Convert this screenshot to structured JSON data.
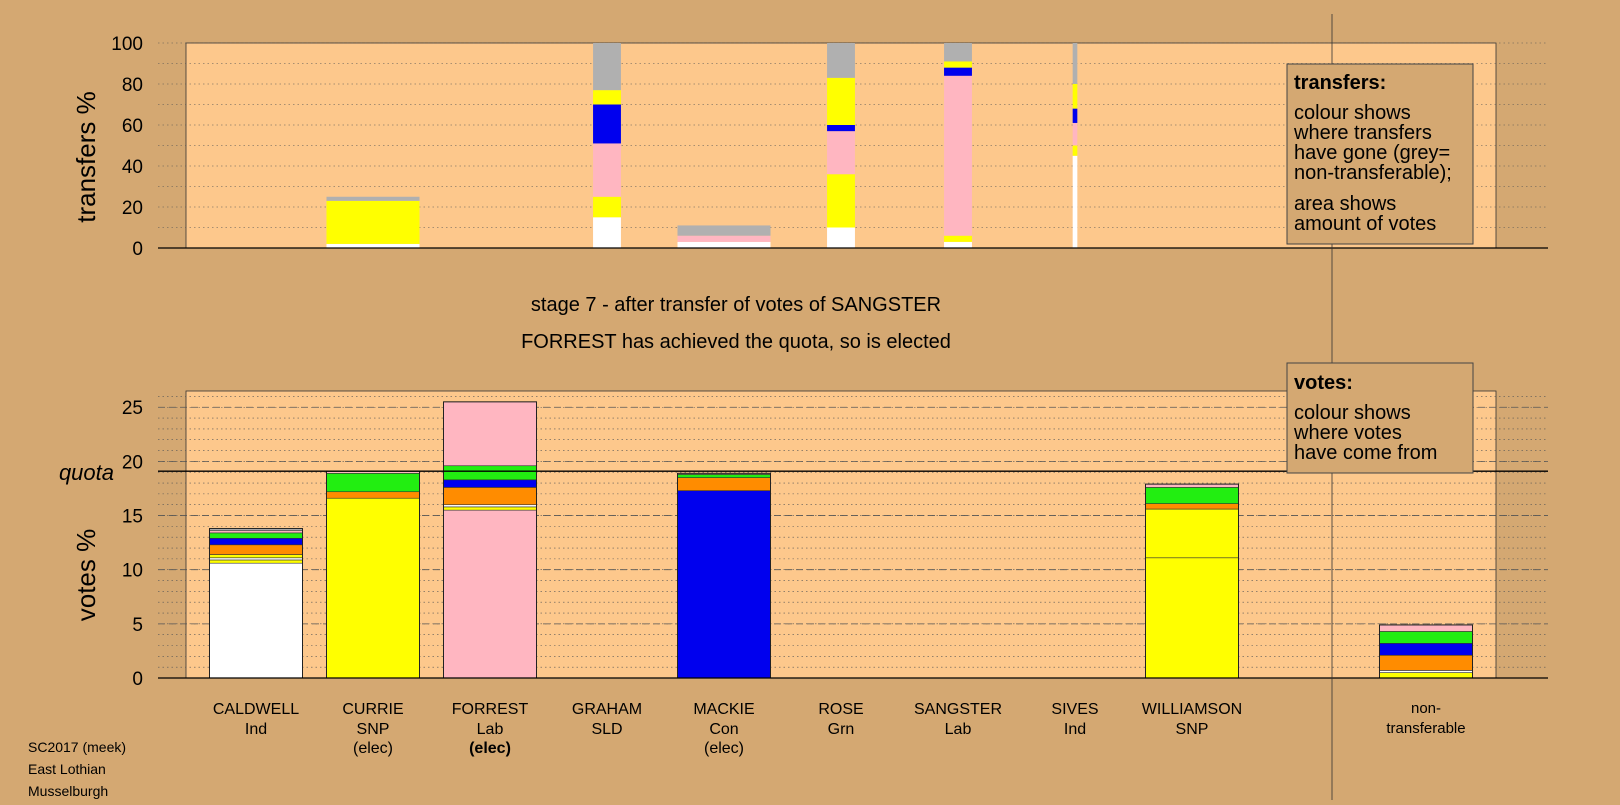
{
  "chart_data": [
    {
      "type": "bar",
      "stacked": true,
      "ylabel": "transfers %",
      "ylim": [
        0,
        100
      ],
      "yticks": [
        0,
        20,
        40,
        60,
        80,
        100
      ],
      "grid": "dotted",
      "categories": [
        "CALDWELL",
        "CURRIE",
        "FORREST",
        "GRAHAM",
        "MACKIE",
        "ROSE",
        "SANGSTER",
        "SIVES",
        "WILLIAMSON",
        "non-transferable"
      ],
      "bars": [
        {
          "cat": 1,
          "width": 1,
          "segments": [
            {
              "c": "white",
              "v": 2
            },
            {
              "c": "yellow",
              "v": 21
            },
            {
              "c": "grey",
              "v": 2
            }
          ]
        },
        {
          "cat": 3,
          "width": 0.3,
          "segments": [
            {
              "c": "white",
              "v": 15
            },
            {
              "c": "yellow",
              "v": 10
            },
            {
              "c": "pink",
              "v": 26
            },
            {
              "c": "blue",
              "v": 19
            },
            {
              "c": "yellow",
              "v": 7
            },
            {
              "c": "grey",
              "v": 23
            }
          ]
        },
        {
          "cat": 4,
          "width": 1,
          "segments": [
            {
              "c": "white",
              "v": 3
            },
            {
              "c": "pink",
              "v": 3
            },
            {
              "c": "grey",
              "v": 5
            }
          ]
        },
        {
          "cat": 5,
          "width": 0.3,
          "segments": [
            {
              "c": "white",
              "v": 10
            },
            {
              "c": "yellow",
              "v": 26
            },
            {
              "c": "pink",
              "v": 21
            },
            {
              "c": "blue",
              "v": 3
            },
            {
              "c": "yellow",
              "v": 23
            },
            {
              "c": "grey",
              "v": 17
            }
          ]
        },
        {
          "cat": 6,
          "width": 0.3,
          "segments": [
            {
              "c": "white",
              "v": 3
            },
            {
              "c": "yellow",
              "v": 3
            },
            {
              "c": "pink",
              "v": 78
            },
            {
              "c": "blue",
              "v": 4
            },
            {
              "c": "yellow",
              "v": 3
            },
            {
              "c": "grey",
              "v": 9
            }
          ]
        },
        {
          "cat": 7,
          "width": 0.05,
          "segments": [
            {
              "c": "white",
              "v": 45
            },
            {
              "c": "yellow",
              "v": 5
            },
            {
              "c": "pink",
              "v": 11
            },
            {
              "c": "blue",
              "v": 7
            },
            {
              "c": "yellow",
              "v": 12
            },
            {
              "c": "grey",
              "v": 20
            }
          ]
        }
      ]
    },
    {
      "type": "bar",
      "stacked": true,
      "ylabel": "votes %",
      "ylim": [
        0,
        26.5
      ],
      "yticks": [
        0,
        5,
        10,
        15,
        20,
        25
      ],
      "quota": 19.1,
      "quota_label": "quota",
      "grid": "dotted",
      "categories": [
        "CALDWELL",
        "CURRIE",
        "FORREST",
        "GRAHAM",
        "MACKIE",
        "ROSE",
        "SANGSTER",
        "SIVES",
        "WILLIAMSON",
        "non-transferable"
      ],
      "bars": [
        {
          "cat": 0,
          "segments": [
            {
              "c": "white",
              "v": 10.6
            },
            {
              "c": "yellow",
              "v": 0.3
            },
            {
              "c": "white",
              "v": 0.2
            },
            {
              "c": "yellow",
              "v": 0.3
            },
            {
              "c": "orange",
              "v": 0.9
            },
            {
              "c": "blue",
              "v": 0.6
            },
            {
              "c": "green",
              "v": 0.5
            },
            {
              "c": "pink",
              "v": 0.2
            },
            {
              "c": "grey",
              "v": 0.2
            }
          ]
        },
        {
          "cat": 1,
          "segments": [
            {
              "c": "yellow",
              "v": 16.6
            },
            {
              "c": "orange",
              "v": 0.6
            },
            {
              "c": "green",
              "v": 1.7
            },
            {
              "c": "pink",
              "v": 0.2
            }
          ]
        },
        {
          "cat": 2,
          "segments": [
            {
              "c": "pink",
              "v": 15.5
            },
            {
              "c": "yellow",
              "v": 0.3
            },
            {
              "c": "white",
              "v": 0.2
            },
            {
              "c": "orange",
              "v": 1.6
            },
            {
              "c": "blue",
              "v": 0.7
            },
            {
              "c": "green",
              "v": 1.3
            },
            {
              "c": "pink",
              "v": 5.9
            }
          ]
        },
        {
          "cat": 4,
          "segments": [
            {
              "c": "blue",
              "v": 17.3
            },
            {
              "c": "orange",
              "v": 1.2
            },
            {
              "c": "green",
              "v": 0.3
            },
            {
              "c": "pink",
              "v": 0.1
            }
          ]
        },
        {
          "cat": 8,
          "segments": [
            {
              "c": "yellow",
              "v": 11.1
            },
            {
              "c": "yellow",
              "v": 4.5
            },
            {
              "c": "orange",
              "v": 0.5
            },
            {
              "c": "green",
              "v": 1.5
            },
            {
              "c": "pink",
              "v": 0.3
            }
          ]
        },
        {
          "cat": 9,
          "segments": [
            {
              "c": "yellow",
              "v": 0.5
            },
            {
              "c": "white",
              "v": 0.2
            },
            {
              "c": "orange",
              "v": 1.4
            },
            {
              "c": "blue",
              "v": 1.1
            },
            {
              "c": "green",
              "v": 1.1
            },
            {
              "c": "pink",
              "v": 0.6
            }
          ]
        }
      ]
    }
  ],
  "colors": {
    "white": "#ffffff",
    "yellow": "#ffff00",
    "pink": "#ffb6c1",
    "blue": "#0000ee",
    "orange": "#ff8c00",
    "green": "#22ee11",
    "grey": "#b0b0b0",
    "page_bg": "#d4a872",
    "plot_bg": "#fdc88c"
  },
  "candidates": [
    {
      "name": "CALDWELL",
      "party": "Ind",
      "status": ""
    },
    {
      "name": "CURRIE",
      "party": "SNP",
      "status": "(elec)"
    },
    {
      "name": "FORREST",
      "party": "Lab",
      "status": "(elec)",
      "bold_status": true
    },
    {
      "name": "GRAHAM",
      "party": "SLD",
      "status": ""
    },
    {
      "name": "MACKIE",
      "party": "Con",
      "status": "(elec)"
    },
    {
      "name": "ROSE",
      "party": "Grn",
      "status": ""
    },
    {
      "name": "SANGSTER",
      "party": "Lab",
      "status": ""
    },
    {
      "name": "SIVES",
      "party": "Ind",
      "status": ""
    },
    {
      "name": "WILLIAMSON",
      "party": "SNP",
      "status": ""
    }
  ],
  "nontransferable_label": [
    "non-",
    "transferable"
  ],
  "stage_line1": "stage 7 - after transfer of votes of SANGSTER",
  "stage_line2": "FORREST has achieved the quota, so is elected",
  "legend_transfers": {
    "title": "transfers:",
    "lines": [
      "colour shows",
      "where transfers",
      "have gone (grey=",
      "non-transferable);"
    ],
    "lines2": [
      "area shows",
      "amount of votes"
    ]
  },
  "legend_votes": {
    "title": "votes:",
    "lines": [
      "colour shows",
      "where votes",
      "have come from"
    ]
  },
  "meta_lines": [
    "SC2017 (meek)",
    "East Lothian",
    "Musselburgh"
  ]
}
